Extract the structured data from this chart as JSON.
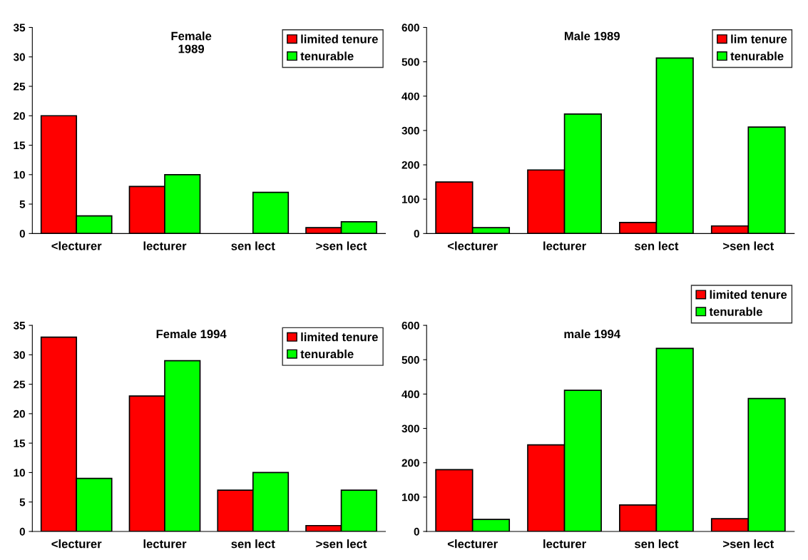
{
  "chart_data": [
    {
      "type": "bar",
      "title": "Female\n1989",
      "categories": [
        "<lecturer",
        "lecturer",
        "sen lect",
        ">sen lect"
      ],
      "series": [
        {
          "name": "limited tenure",
          "color": "#ff0000",
          "values": [
            20,
            8,
            null,
            1
          ]
        },
        {
          "name": "tenurable",
          "color": "#00ff00",
          "values": [
            3,
            10,
            7,
            2
          ]
        }
      ],
      "ylim": [
        0,
        35
      ],
      "yticks": [
        0,
        5,
        10,
        15,
        20,
        25,
        30,
        35
      ],
      "legend": "top right",
      "grid": false
    },
    {
      "type": "bar",
      "title": "Male 1989",
      "categories": [
        "<lecturer",
        "lecturer",
        "sen lect",
        ">sen lect"
      ],
      "series": [
        {
          "name": "lim tenure",
          "color": "#ff0000",
          "values": [
            150,
            185,
            32,
            22
          ]
        },
        {
          "name": "tenurable",
          "color": "#00ff00",
          "values": [
            17,
            348,
            511,
            310
          ]
        }
      ],
      "ylim": [
        0,
        600
      ],
      "yticks": [
        0,
        100,
        200,
        300,
        400,
        500,
        600
      ],
      "legend": "top right",
      "grid": false
    },
    {
      "type": "bar",
      "title": "Female 1994",
      "categories": [
        "<lecturer",
        "lecturer",
        "sen lect",
        ">sen lect"
      ],
      "series": [
        {
          "name": "limited tenure",
          "color": "#ff0000",
          "values": [
            33,
            23,
            7,
            1
          ]
        },
        {
          "name": "tenurable",
          "color": "#00ff00",
          "values": [
            9,
            29,
            10,
            7
          ]
        }
      ],
      "ylim": [
        0,
        35
      ],
      "yticks": [
        0,
        5,
        10,
        15,
        20,
        25,
        30,
        35
      ],
      "legend": "top right",
      "grid": false
    },
    {
      "type": "bar",
      "title": "male 1994",
      "categories": [
        "<lecturer",
        "lecturer",
        "sen lect",
        ">sen lect"
      ],
      "series": [
        {
          "name": "limited tenure",
          "color": "#ff0000",
          "values": [
            180,
            252,
            77,
            37
          ]
        },
        {
          "name": "tenurable",
          "color": "#00ff00",
          "values": [
            35,
            411,
            533,
            387
          ]
        }
      ],
      "ylim": [
        0,
        600
      ],
      "yticks": [
        0,
        100,
        200,
        300,
        400,
        500,
        600
      ],
      "legend": "top",
      "grid": false
    }
  ]
}
